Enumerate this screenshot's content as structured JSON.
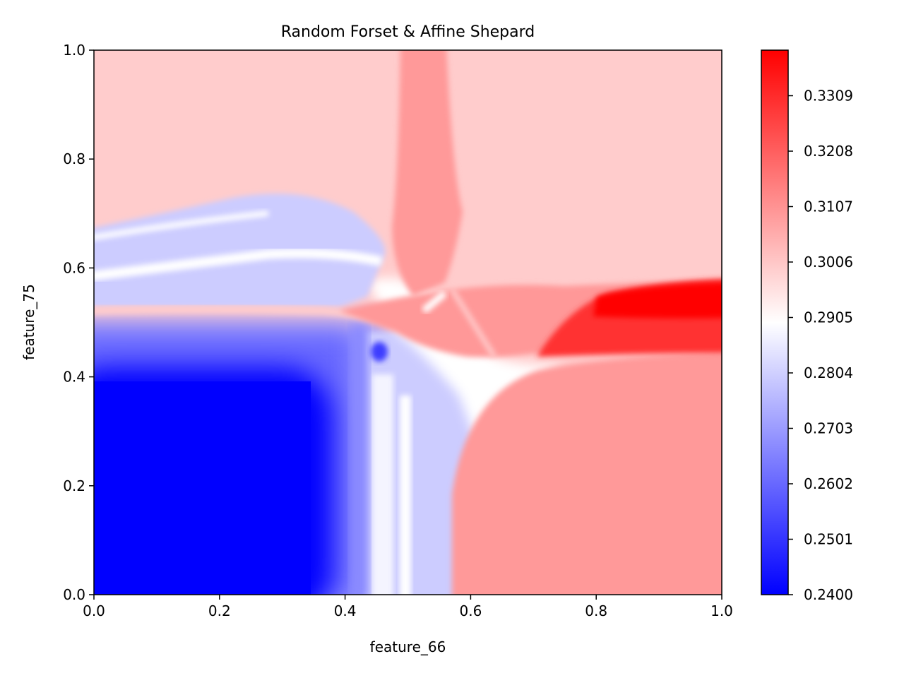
{
  "chart_data": {
    "type": "heatmap",
    "title": "Random Forset & Affine Shepard",
    "xlabel": "feature_66",
    "ylabel": "feature_75",
    "xlim": [
      0.0,
      1.0
    ],
    "ylim": [
      0.0,
      1.0
    ],
    "x_ticks": [
      "0.0",
      "0.2",
      "0.4",
      "0.6",
      "0.8",
      "1.0"
    ],
    "y_ticks": [
      "0.0",
      "0.2",
      "0.4",
      "0.6",
      "0.8",
      "1.0"
    ],
    "colormap": [
      "#0000ff",
      "#ffffff",
      "#ff0000"
    ],
    "colorbar": {
      "vmin": 0.24,
      "vmax": 0.3392,
      "ticks": [
        "0.2400",
        "0.2501",
        "0.2602",
        "0.2703",
        "0.2804",
        "0.2905",
        "0.3006",
        "0.3107",
        "0.3208",
        "0.3309"
      ]
    },
    "grid": false,
    "regions": [
      {
        "name": "top-left-background",
        "x": [
          0.0,
          1.0
        ],
        "y": [
          0.5,
          1.0
        ],
        "value": 0.302
      },
      {
        "name": "bottom-left-low",
        "x": [
          0.0,
          0.42
        ],
        "y": [
          0.0,
          0.4
        ],
        "value": 0.24
      },
      {
        "name": "left-band",
        "x": [
          0.0,
          0.5
        ],
        "y": [
          0.4,
          0.5
        ],
        "value": 0.255
      },
      {
        "name": "center-stripes",
        "x": [
          0.43,
          0.58
        ],
        "y": [
          0.0,
          0.45
        ],
        "value": 0.282
      },
      {
        "name": "bottom-right",
        "x": [
          0.6,
          1.0
        ],
        "y": [
          0.0,
          0.42
        ],
        "value": 0.31
      },
      {
        "name": "upper-left-lobe",
        "x": [
          0.0,
          0.45
        ],
        "y": [
          0.52,
          0.72
        ],
        "value": 0.281
      },
      {
        "name": "vertical-column",
        "x": [
          0.5,
          0.58
        ],
        "y": [
          0.58,
          1.0
        ],
        "value": 0.31
      },
      {
        "name": "right-band-high",
        "x": [
          0.75,
          1.0
        ],
        "y": [
          0.44,
          0.58
        ],
        "value": 0.3392
      }
    ]
  }
}
